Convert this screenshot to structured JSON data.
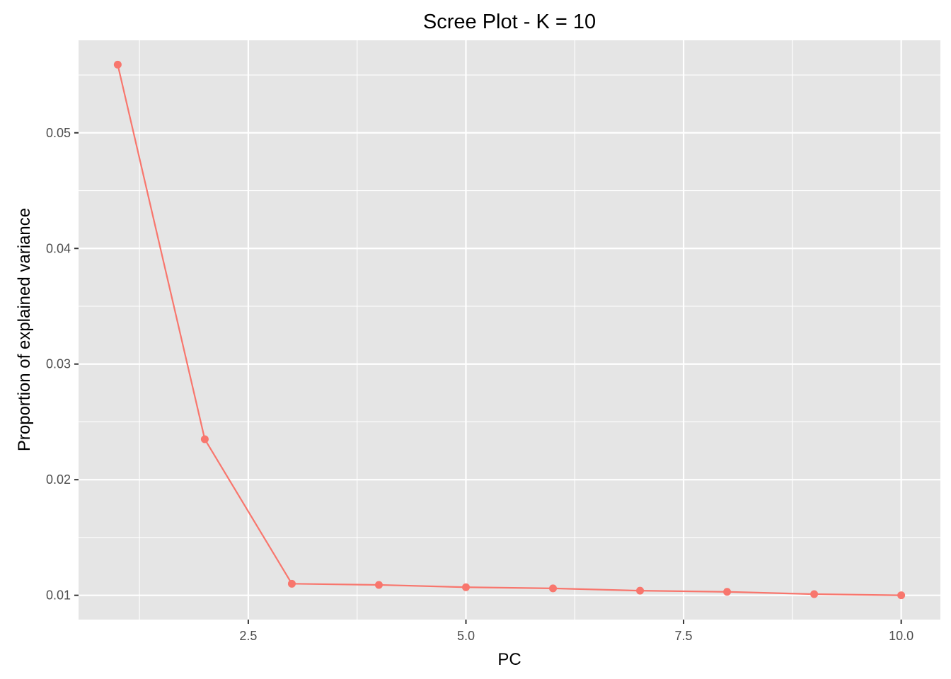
{
  "chart_data": {
    "type": "line",
    "title": "Scree Plot - K = 10",
    "xlabel": "PC",
    "ylabel": "Proportion of explained variance",
    "x": [
      1,
      2,
      3,
      4,
      5,
      6,
      7,
      8,
      9,
      10
    ],
    "series": [
      {
        "values": [
          0.0559,
          0.0235,
          0.011,
          0.0109,
          0.0107,
          0.0106,
          0.0104,
          0.0103,
          0.0101,
          0.01
        ]
      }
    ],
    "xlim": [
      0.55,
      10.45
    ],
    "ylim": [
      0.0079,
      0.058
    ],
    "x_ticks": [
      2.5,
      5.0,
      7.5,
      10.0
    ],
    "x_tick_labels": [
      "2.5",
      "5.0",
      "7.5",
      "10.0"
    ],
    "y_ticks": [
      0.01,
      0.02,
      0.03,
      0.04,
      0.05
    ],
    "y_tick_labels": [
      "0.01",
      "0.02",
      "0.03",
      "0.04",
      "0.05"
    ],
    "grid": true,
    "legend": "none",
    "colors": {
      "series": "#F8766D",
      "panel_background": "#E5E5E5",
      "grid_line": "#FFFFFF",
      "tick_text": "#4D4D4D"
    }
  }
}
